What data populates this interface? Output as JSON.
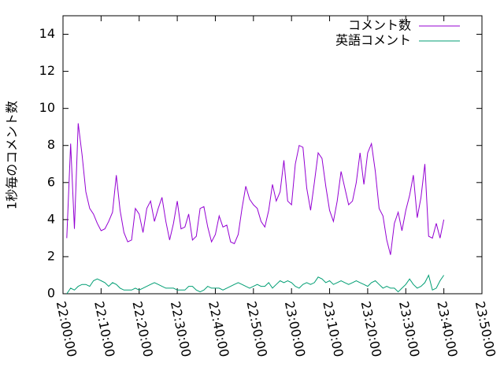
{
  "chart_data": {
    "type": "line",
    "ylabel": "1秒毎のコメント数",
    "x": [
      "22:01:00",
      "22:02:00",
      "22:03:00",
      "22:04:00",
      "22:05:00",
      "22:06:00",
      "22:07:00",
      "22:08:00",
      "22:09:00",
      "22:10:00",
      "22:11:00",
      "22:12:00",
      "22:13:00",
      "22:14:00",
      "22:15:00",
      "22:16:00",
      "22:17:00",
      "22:18:00",
      "22:19:00",
      "22:20:00",
      "22:21:00",
      "22:22:00",
      "22:23:00",
      "22:24:00",
      "22:25:00",
      "22:26:00",
      "22:27:00",
      "22:28:00",
      "22:29:00",
      "22:30:00",
      "22:31:00",
      "22:32:00",
      "22:33:00",
      "22:34:00",
      "22:35:00",
      "22:36:00",
      "22:37:00",
      "22:38:00",
      "22:39:00",
      "22:40:00",
      "22:41:00",
      "22:42:00",
      "22:43:00",
      "22:44:00",
      "22:45:00",
      "22:46:00",
      "22:47:00",
      "22:48:00",
      "22:49:00",
      "22:50:00",
      "22:51:00",
      "22:52:00",
      "22:53:00",
      "22:54:00",
      "22:55:00",
      "22:56:00",
      "22:57:00",
      "22:58:00",
      "22:59:00",
      "23:00:00",
      "23:01:00",
      "23:02:00",
      "23:03:00",
      "23:04:00",
      "23:05:00",
      "23:06:00",
      "23:07:00",
      "23:08:00",
      "23:09:00",
      "23:10:00",
      "23:11:00",
      "23:12:00",
      "23:13:00",
      "23:14:00",
      "23:15:00",
      "23:16:00",
      "23:17:00",
      "23:18:00",
      "23:19:00",
      "23:20:00",
      "23:21:00",
      "23:22:00",
      "23:23:00",
      "23:24:00",
      "23:25:00",
      "23:26:00",
      "23:27:00",
      "23:28:00",
      "23:29:00",
      "23:30:00",
      "23:31:00",
      "23:32:00",
      "23:33:00",
      "23:34:00",
      "23:35:00",
      "23:36:00",
      "23:37:00",
      "23:38:00",
      "23:39:00",
      "23:40:00"
    ],
    "series": [
      {
        "name": "コメント数",
        "color": "#9400d3",
        "values": [
          3.0,
          8.1,
          3.5,
          9.2,
          7.5,
          5.5,
          4.6,
          4.3,
          3.8,
          3.4,
          3.5,
          3.9,
          4.4,
          6.4,
          4.5,
          3.3,
          2.8,
          2.9,
          4.6,
          4.3,
          3.3,
          4.6,
          5.0,
          3.9,
          4.6,
          5.2,
          3.9,
          2.9,
          3.8,
          5.0,
          3.5,
          3.6,
          4.3,
          2.9,
          3.1,
          4.6,
          4.7,
          3.6,
          2.8,
          3.2,
          4.2,
          3.6,
          3.7,
          2.8,
          2.7,
          3.2,
          4.6,
          5.8,
          5.1,
          4.8,
          4.6,
          3.9,
          3.6,
          4.5,
          5.9,
          5.0,
          5.5,
          7.2,
          5.0,
          4.8,
          7.0,
          8.0,
          7.9,
          5.7,
          4.5,
          6.0,
          7.6,
          7.3,
          5.8,
          4.5,
          3.9,
          5.0,
          6.6,
          5.7,
          4.8,
          5.0,
          6.0,
          7.6,
          5.9,
          7.6,
          8.1,
          6.6,
          4.6,
          4.2,
          2.9,
          2.1,
          3.8,
          4.4,
          3.4,
          4.5,
          5.3,
          6.4,
          4.1,
          5.2,
          7.0,
          3.1,
          3.0,
          3.8,
          3.0,
          4.0
        ]
      },
      {
        "name": "英語コメント",
        "color": "#009e73",
        "values": [
          0.0,
          0.3,
          0.2,
          0.4,
          0.5,
          0.5,
          0.4,
          0.7,
          0.8,
          0.7,
          0.6,
          0.4,
          0.6,
          0.5,
          0.3,
          0.2,
          0.2,
          0.2,
          0.3,
          0.2,
          0.3,
          0.4,
          0.5,
          0.6,
          0.5,
          0.4,
          0.3,
          0.3,
          0.3,
          0.2,
          0.2,
          0.2,
          0.4,
          0.4,
          0.2,
          0.1,
          0.2,
          0.4,
          0.3,
          0.3,
          0.3,
          0.2,
          0.3,
          0.4,
          0.5,
          0.6,
          0.5,
          0.4,
          0.3,
          0.4,
          0.5,
          0.4,
          0.4,
          0.6,
          0.3,
          0.5,
          0.7,
          0.6,
          0.7,
          0.6,
          0.4,
          0.3,
          0.5,
          0.6,
          0.5,
          0.6,
          0.9,
          0.8,
          0.6,
          0.7,
          0.5,
          0.6,
          0.7,
          0.6,
          0.5,
          0.6,
          0.7,
          0.6,
          0.5,
          0.4,
          0.6,
          0.7,
          0.5,
          0.3,
          0.4,
          0.3,
          0.3,
          0.1,
          0.3,
          0.5,
          0.8,
          0.5,
          0.3,
          0.4,
          0.6,
          1.0,
          0.2,
          0.3,
          0.7,
          1.0
        ]
      }
    ],
    "xlim": [
      "22:00:00",
      "23:50:00"
    ],
    "xticks": [
      "22:00:00",
      "22:10:00",
      "22:20:00",
      "22:30:00",
      "22:40:00",
      "22:50:00",
      "23:00:00",
      "23:10:00",
      "23:20:00",
      "23:30:00",
      "23:40:00",
      "23:50:00"
    ],
    "ylim": [
      0,
      15
    ],
    "yticks": [
      0,
      2,
      4,
      6,
      8,
      10,
      12,
      14
    ],
    "legend": "top-right"
  }
}
